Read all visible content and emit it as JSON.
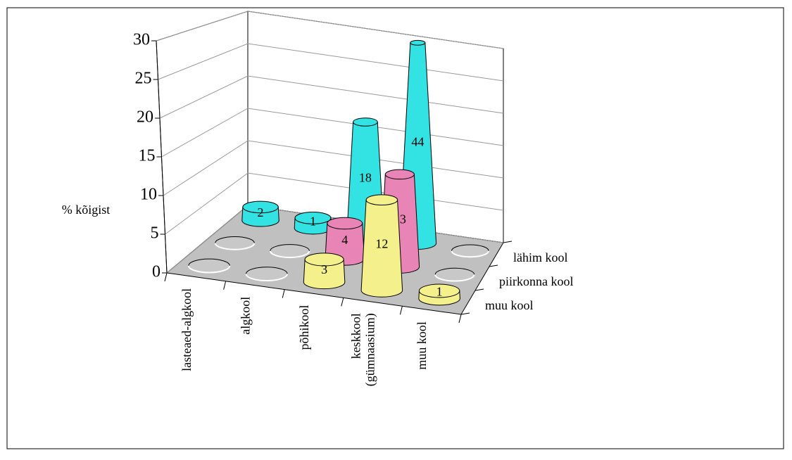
{
  "chart_data": {
    "type": "bar3d",
    "ylabel": "% kõigist",
    "categories": [
      "lasteaed-algkool",
      "algkool",
      "põhikool",
      "keskkool\n(gümnaasium)",
      "muu kool"
    ],
    "series": [
      {
        "name": "lähim kool",
        "color": "#33e3e3",
        "values": [
          2,
          1.5,
          17,
          30,
          0
        ],
        "counts": [
          2,
          1,
          18,
          44,
          null
        ]
      },
      {
        "name": "piirkonna kool",
        "color": "#e985b6",
        "values": [
          0,
          0,
          5,
          13,
          0
        ],
        "counts": [
          null,
          null,
          4,
          13,
          null
        ]
      },
      {
        "name": "muu kool",
        "color": "#f4f08c",
        "values": [
          0,
          0,
          3,
          12,
          1
        ],
        "counts": [
          null,
          null,
          3,
          12,
          1
        ]
      }
    ],
    "ylim": [
      0,
      30
    ],
    "yticks": [
      0,
      5,
      10,
      15,
      20,
      25,
      30
    ],
    "grid": true
  }
}
